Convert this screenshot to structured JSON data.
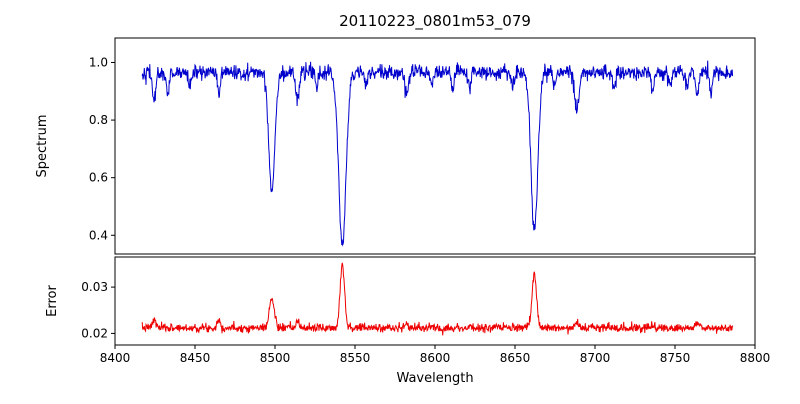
{
  "figure": {
    "title": "20110223_0801m53_079",
    "background": "#ffffff"
  },
  "x_axis": {
    "label": "Wavelength",
    "lim": [
      8400,
      8800
    ],
    "ticks": [
      8400,
      8450,
      8500,
      8550,
      8600,
      8650,
      8700,
      8750,
      8800
    ]
  },
  "chart_data": [
    {
      "type": "line",
      "series_name": "spectrum",
      "color": "#0000cd",
      "ylabel": "Spectrum",
      "ylim": [
        0.335,
        1.085
      ],
      "yticks": [
        0.4,
        0.6,
        0.8,
        1.0
      ],
      "ytick_labels": [
        "0.4",
        "0.6",
        "0.8",
        "1.0"
      ],
      "x_range": [
        8417,
        8786
      ],
      "num_points": 1400,
      "seed": 42,
      "legend": "none",
      "grid": false,
      "model": {
        "continuum": 0.965,
        "noise_sigma": 0.013,
        "absorption_lines": [
          {
            "center": 8498.0,
            "depth": 0.41,
            "width": 1.9
          },
          {
            "center": 8542.1,
            "depth": 0.6,
            "width": 2.3
          },
          {
            "center": 8662.1,
            "depth": 0.55,
            "width": 2.1
          },
          {
            "center": 8424.5,
            "depth": 0.1,
            "width": 1.0
          },
          {
            "center": 8433.0,
            "depth": 0.08,
            "width": 0.9
          },
          {
            "center": 8446.5,
            "depth": 0.05,
            "width": 0.8
          },
          {
            "center": 8464.8,
            "depth": 0.07,
            "width": 0.9
          },
          {
            "center": 8514.1,
            "depth": 0.1,
            "width": 1.0
          },
          {
            "center": 8526.0,
            "depth": 0.05,
            "width": 0.8
          },
          {
            "center": 8556.8,
            "depth": 0.05,
            "width": 0.8
          },
          {
            "center": 8582.3,
            "depth": 0.08,
            "width": 1.0
          },
          {
            "center": 8598.0,
            "depth": 0.05,
            "width": 0.8
          },
          {
            "center": 8611.0,
            "depth": 0.06,
            "width": 0.8
          },
          {
            "center": 8621.6,
            "depth": 0.06,
            "width": 0.8
          },
          {
            "center": 8648.5,
            "depth": 0.05,
            "width": 0.8
          },
          {
            "center": 8674.8,
            "depth": 0.05,
            "width": 0.8
          },
          {
            "center": 8688.6,
            "depth": 0.13,
            "width": 1.3
          },
          {
            "center": 8712.0,
            "depth": 0.06,
            "width": 0.9
          },
          {
            "center": 8736.0,
            "depth": 0.07,
            "width": 0.9
          },
          {
            "center": 8747.0,
            "depth": 0.05,
            "width": 0.8
          },
          {
            "center": 8757.5,
            "depth": 0.06,
            "width": 0.8
          },
          {
            "center": 8763.9,
            "depth": 0.08,
            "width": 0.9
          },
          {
            "center": 8772.5,
            "depth": 0.07,
            "width": 0.8
          }
        ]
      }
    },
    {
      "type": "line",
      "series_name": "error",
      "color": "#ee0000",
      "ylabel": "Error",
      "ylim": [
        0.0175,
        0.0365
      ],
      "yticks": [
        0.02,
        0.03
      ],
      "ytick_labels": [
        "0.02",
        "0.03"
      ],
      "x_range": [
        8417,
        8786
      ],
      "num_points": 1400,
      "seed": 7,
      "legend": "none",
      "grid": false,
      "model": {
        "baseline": 0.0212,
        "noise_sigma": 0.00045,
        "emission_peaks": [
          {
            "center": 8498.0,
            "height": 0.0062,
            "width": 1.6
          },
          {
            "center": 8542.1,
            "height": 0.0138,
            "width": 1.4
          },
          {
            "center": 8662.1,
            "height": 0.0118,
            "width": 1.4
          },
          {
            "center": 8424.5,
            "height": 0.0016,
            "width": 1.2
          },
          {
            "center": 8464.8,
            "height": 0.0018,
            "width": 1.0
          },
          {
            "center": 8514.1,
            "height": 0.0013,
            "width": 1.0
          },
          {
            "center": 8582.3,
            "height": 0.0008,
            "width": 1.0
          },
          {
            "center": 8688.6,
            "height": 0.0015,
            "width": 1.3
          },
          {
            "center": 8736.0,
            "height": 0.0007,
            "width": 0.9
          },
          {
            "center": 8763.9,
            "height": 0.0012,
            "width": 1.0
          }
        ]
      }
    }
  ]
}
